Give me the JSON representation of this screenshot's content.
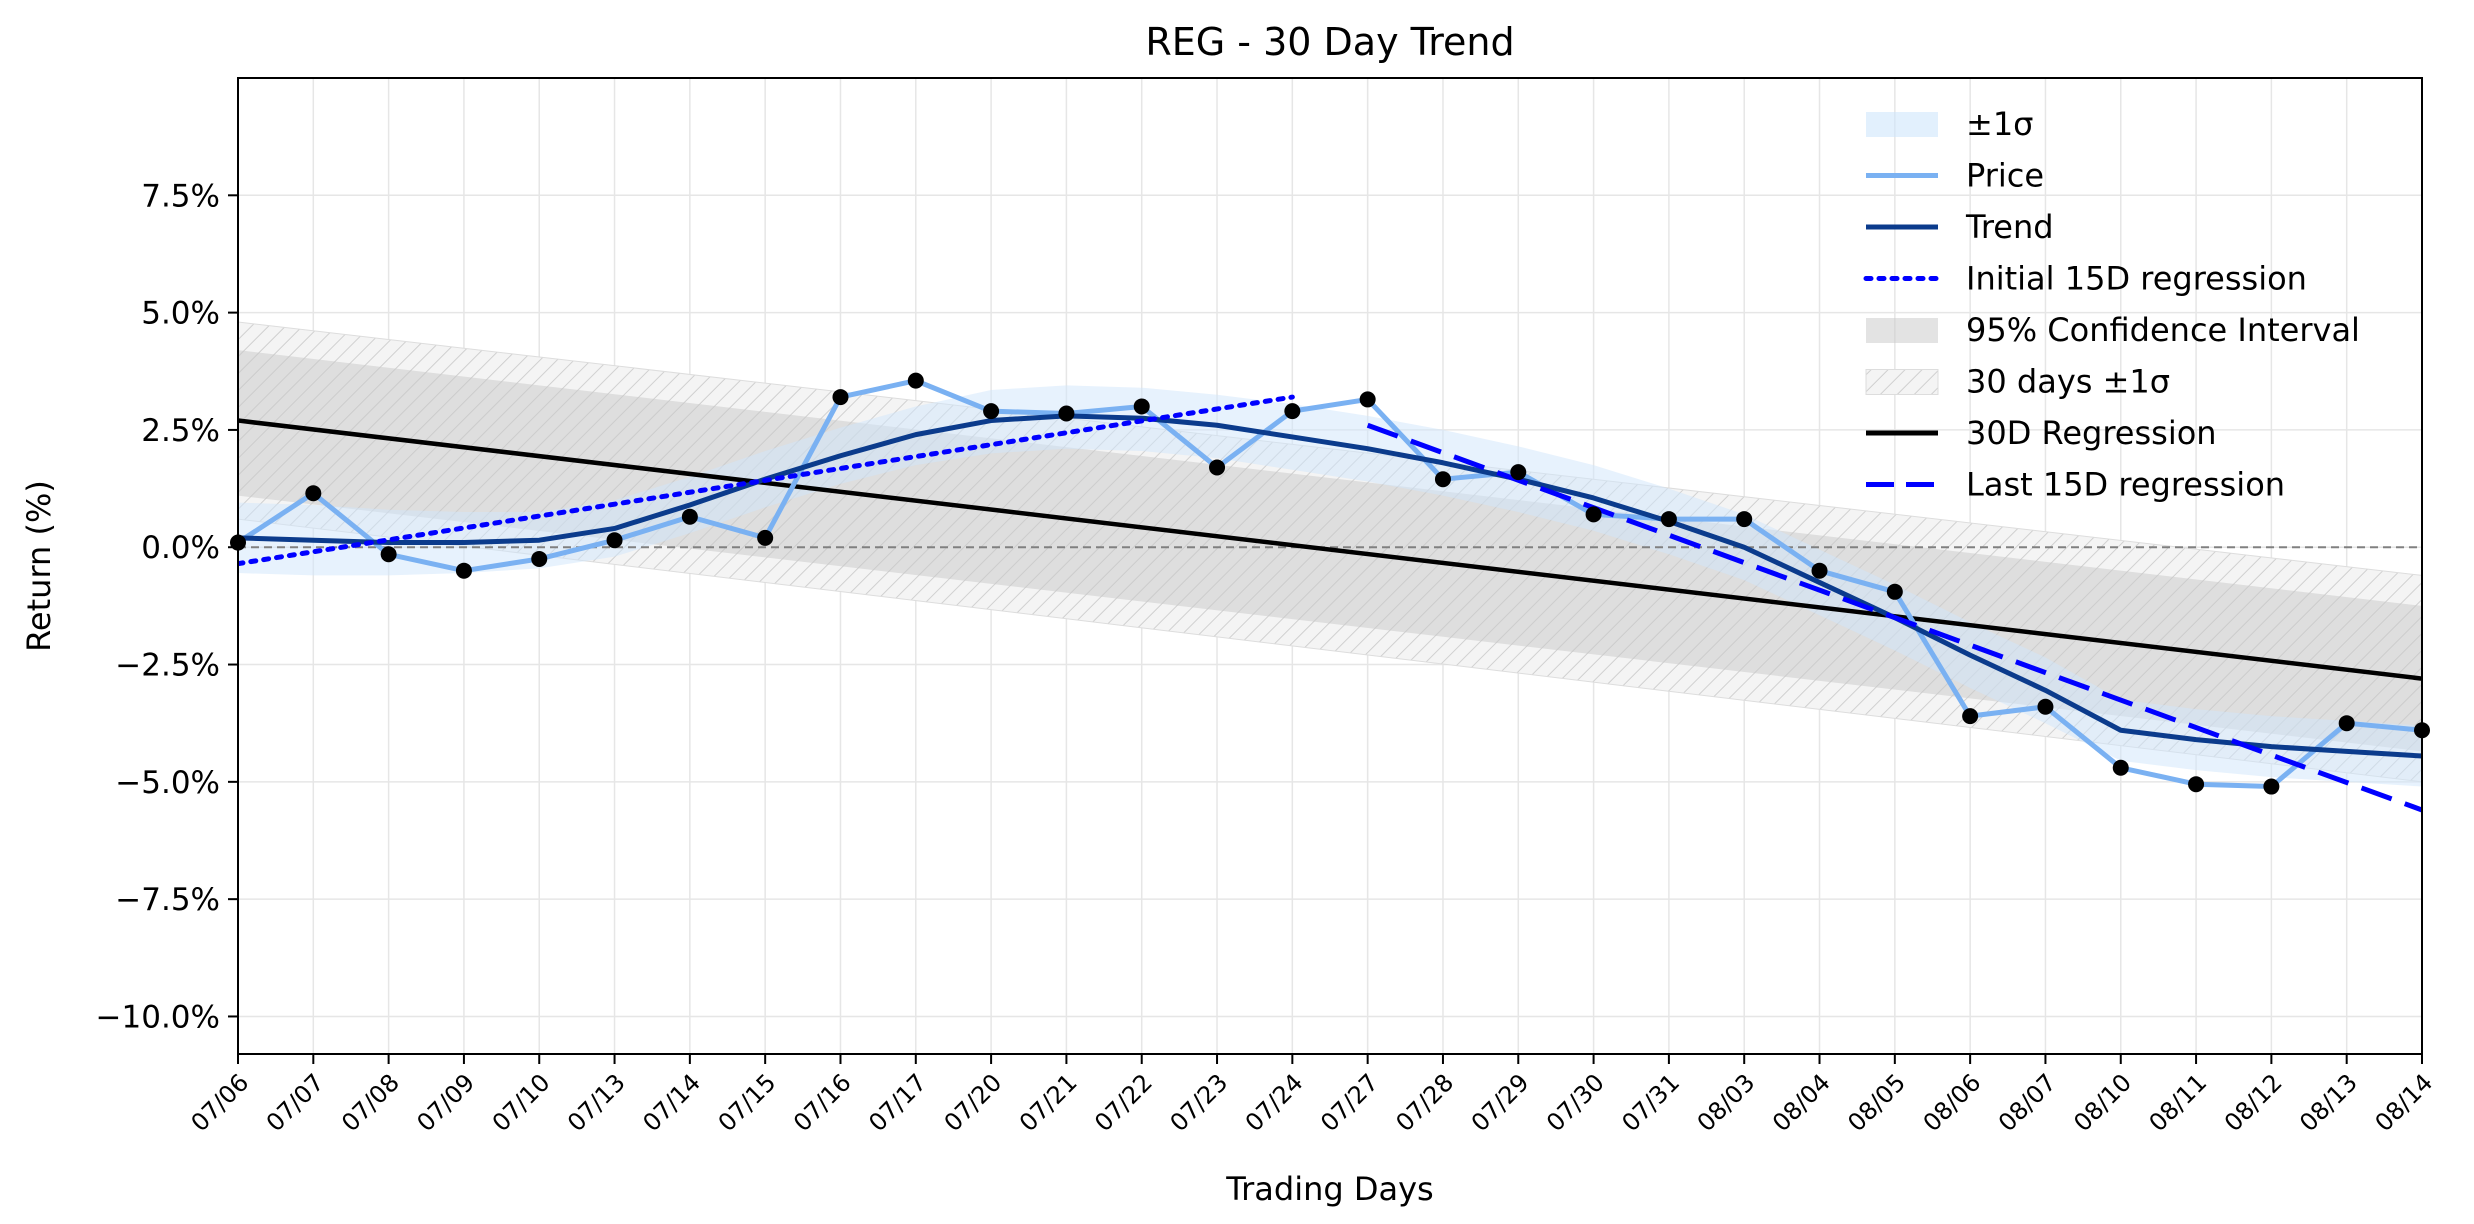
{
  "chart_data": {
    "type": "line",
    "title": "REG - 30 Day Trend",
    "xlabel": "Trading Days",
    "ylabel": "Return (%)",
    "categories": [
      "07/06",
      "07/07",
      "07/08",
      "07/09",
      "07/10",
      "07/13",
      "07/14",
      "07/15",
      "07/16",
      "07/17",
      "07/20",
      "07/21",
      "07/22",
      "07/23",
      "07/24",
      "07/27",
      "07/28",
      "07/29",
      "07/30",
      "07/31",
      "08/03",
      "08/04",
      "08/05",
      "08/06",
      "08/07",
      "08/10",
      "08/11",
      "08/12",
      "08/13",
      "08/14"
    ],
    "ylim": [
      -10.8,
      10.0
    ],
    "yticks": [
      -10.0,
      -7.5,
      -5.0,
      -2.5,
      0.0,
      2.5,
      5.0,
      7.5
    ],
    "ytick_labels": [
      "−10.0%",
      "−7.5%",
      "−5.0%",
      "−2.5%",
      "0.0%",
      "2.5%",
      "5.0%",
      "7.5%"
    ],
    "grid": true,
    "legend_position": "top-right",
    "series": [
      {
        "name": "Price",
        "color": "#7ab1f2",
        "values": [
          0.1,
          1.15,
          -0.15,
          -0.5,
          -0.25,
          0.15,
          0.65,
          0.2,
          3.2,
          3.55,
          2.9,
          2.85,
          3.0,
          1.7,
          2.9,
          3.15,
          1.45,
          1.6,
          0.7,
          0.6,
          0.6,
          -0.5,
          -0.95,
          -3.6,
          -3.4,
          -4.7,
          -5.05,
          -5.1,
          -3.75,
          -3.9
        ]
      },
      {
        "name": "Trend",
        "color": "#0b3b8c",
        "values": [
          0.2,
          0.15,
          0.1,
          0.1,
          0.15,
          0.4,
          0.9,
          1.45,
          1.95,
          2.4,
          2.7,
          2.8,
          2.75,
          2.6,
          2.35,
          2.1,
          1.8,
          1.45,
          1.05,
          0.55,
          0.0,
          -0.75,
          -1.5,
          -2.3,
          -3.05,
          -3.9,
          -4.1,
          -4.25,
          -4.35,
          -4.45
        ]
      },
      {
        "name": "±1σ",
        "color": "#ddeeff",
        "lower": [
          -0.55,
          -0.6,
          -0.6,
          -0.55,
          -0.45,
          -0.2,
          0.3,
          0.85,
          1.35,
          1.75,
          2.0,
          2.1,
          2.05,
          1.9,
          1.65,
          1.4,
          1.1,
          0.75,
          0.35,
          -0.15,
          -0.7,
          -1.45,
          -2.2,
          -3.0,
          -3.75,
          -4.55,
          -4.75,
          -4.9,
          -5.0,
          -5.1
        ],
        "upper": [
          0.95,
          0.9,
          0.8,
          0.75,
          0.75,
          1.0,
          1.5,
          2.05,
          2.55,
          3.0,
          3.35,
          3.45,
          3.4,
          3.25,
          3.05,
          2.8,
          2.5,
          2.15,
          1.75,
          1.25,
          0.7,
          -0.05,
          -0.8,
          -1.6,
          -2.35,
          -3.25,
          -3.45,
          -3.6,
          -3.7,
          -3.8
        ]
      },
      {
        "name": "Initial 15D regression",
        "color": "#0000ff",
        "start_index": 0,
        "end_index": 14,
        "start": -0.35,
        "end": 3.2
      },
      {
        "name": "Last 15D regression",
        "color": "#0000ff",
        "start_index": 15,
        "end_index": 29,
        "start": 2.6,
        "end": -5.6
      },
      {
        "name": "30D Regression",
        "color": "#000000",
        "start_index": 0,
        "end_index": 29,
        "start": 2.7,
        "end": -2.8
      },
      {
        "name": "95% Confidence Interval",
        "color": "#d9d9d9",
        "upper_start": 4.2,
        "upper_end": -1.25,
        "lower_start": 1.1,
        "lower_end": -4.35
      },
      {
        "name": "30 days ±1σ",
        "color": "#cccccc",
        "upper_start": 4.8,
        "upper_end": -0.6,
        "lower_start": 0.6,
        "lower_end": -5.0
      }
    ],
    "reference_line": {
      "y": 0.0,
      "style": "dashed",
      "color": "#808080"
    }
  }
}
